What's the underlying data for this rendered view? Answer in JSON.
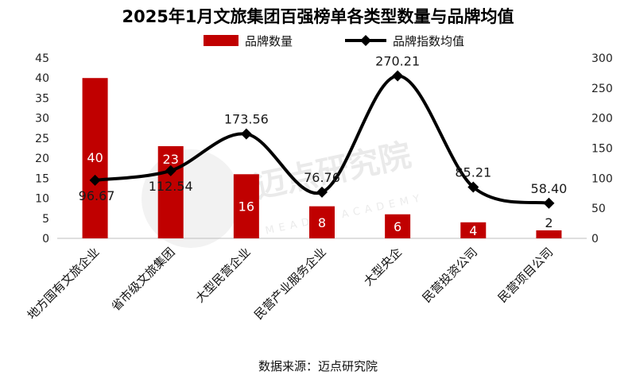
{
  "watermark": {
    "text": "迈点研究院",
    "sub": "MEADIN ACADEMY"
  },
  "chart_data": {
    "type": "bar+line",
    "title": "2025年1月文旅集团百强榜单各类型数量与品牌均值",
    "categories": [
      "地方国有文旅企业",
      "省市级文旅集团",
      "大型民营企业",
      "民营产业服务企业",
      "大型央企",
      "民营投资公司",
      "民营项目公司"
    ],
    "series": [
      {
        "name": "品牌数量",
        "kind": "bar",
        "axis": "left",
        "color": "#c00000",
        "values": [
          40,
          23,
          16,
          8,
          6,
          4,
          2
        ],
        "labels": [
          "40",
          "23",
          "16",
          "8",
          "6",
          "4",
          "2"
        ]
      },
      {
        "name": "品牌指数均值",
        "kind": "line",
        "axis": "right",
        "color": "#000000",
        "values": [
          96.67,
          112.54,
          173.56,
          76.76,
          270.21,
          85.21,
          58.4
        ],
        "labels": [
          "96.67",
          "112.54",
          "173.56",
          "76.76",
          "270.21",
          "85.21",
          "58.40"
        ]
      }
    ],
    "y_left": {
      "min": 0,
      "max": 45,
      "step": 5
    },
    "y_right": {
      "min": 0,
      "max": 300,
      "step": 50
    },
    "grid": false,
    "legend": "top-center",
    "source": "数据来源：迈点研究院"
  }
}
